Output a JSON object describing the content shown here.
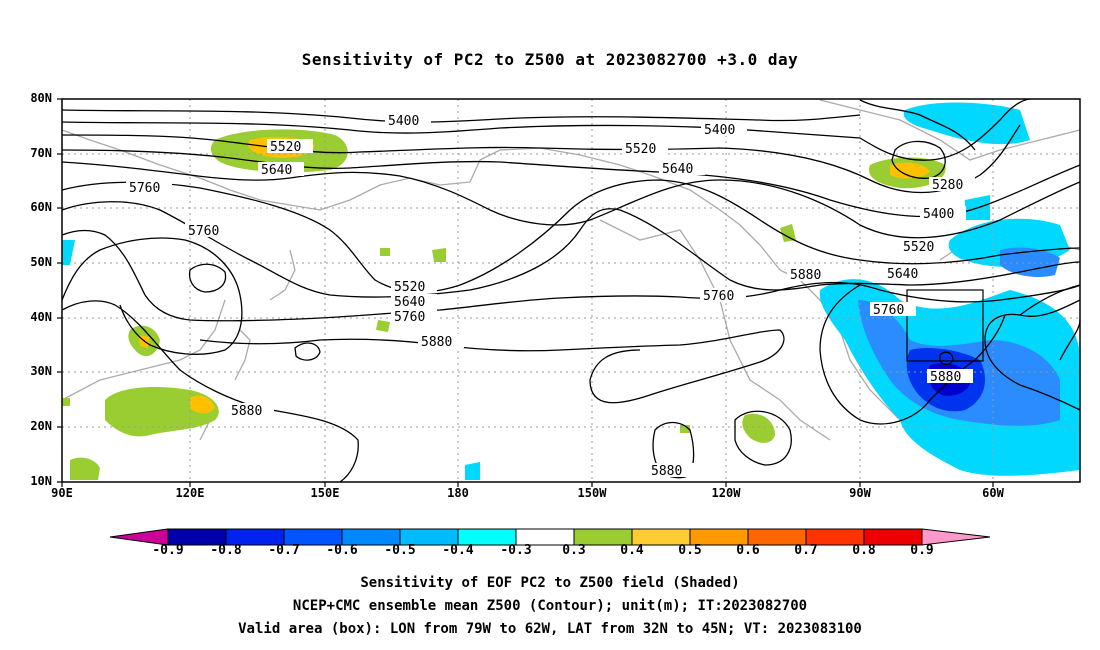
{
  "title": "Sensitivity of PC2 to Z500 at 2023082700 +3.0 day",
  "map": {
    "lat_labels": [
      "80N",
      "70N",
      "60N",
      "50N",
      "40N",
      "30N",
      "20N",
      "10N"
    ],
    "lon_labels": [
      "90E",
      "120E",
      "150E",
      "180",
      "150W",
      "120W",
      "90W",
      "60W"
    ],
    "contour_labels": [
      "5400",
      "5400",
      "5520",
      "5520",
      "5640",
      "5640",
      "5760",
      "5760",
      "5280",
      "5400",
      "5520",
      "5640",
      "5880",
      "5520",
      "5640",
      "5760",
      "5880",
      "5760",
      "5760",
      "5880",
      "5880",
      "5880"
    ],
    "shading_colors": {
      "negative_strong": "#0000cc",
      "negative_mid": "#2a6bff",
      "negative_light": "#00d8ff",
      "positive_light": "#9acd32",
      "positive_mid": "#ffc000"
    }
  },
  "colorbar": {
    "labels": [
      "-0.9",
      "-0.8",
      "-0.7",
      "-0.6",
      "-0.5",
      "-0.4",
      "-0.3",
      "0.3",
      "0.4",
      "0.5",
      "0.6",
      "0.7",
      "0.8",
      "0.9"
    ],
    "colors": [
      "#0000aa",
      "#0022ee",
      "#0055ff",
      "#0088ff",
      "#00bbff",
      "#00ffff",
      "#ffffff",
      "#9acd32",
      "#ffcc33",
      "#ff9900",
      "#ff6600",
      "#ff3300",
      "#ee0000"
    ],
    "left_arrow_color": "#cc0099",
    "right_arrow_color": "#ff99cc"
  },
  "captions": [
    "Sensitivity of EOF PC2 to Z500 field (Shaded)",
    "NCEP+CMC ensemble mean Z500 (Contour); unit(m); IT:2023082700",
    "Valid area (box): LON from 79W to 62W, LAT from 32N to 45N; VT: 2023083100"
  ]
}
